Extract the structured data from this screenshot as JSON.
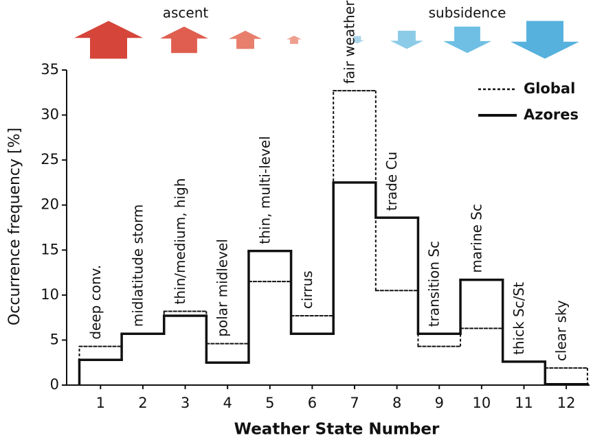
{
  "chart_data": {
    "type": "step",
    "x_label": "Weather State Number",
    "y_label": "Occurrence frequency [%]",
    "annotations": {
      "ascent": "ascent",
      "subsidence": "subsidence"
    },
    "x": [
      1,
      2,
      3,
      4,
      5,
      6,
      7,
      8,
      9,
      10,
      11,
      12
    ],
    "state_names": [
      "deep conv.",
      "midlatitude storm",
      "thin/medium, high",
      "polar midlevel",
      "thin, multi-level",
      "cirrus",
      "fair weather",
      "trade Cu",
      "transition Sc",
      "marine Sc",
      "thick Sc/St",
      "clear sky"
    ],
    "series": [
      {
        "name": "Global",
        "color": "#111111",
        "style": "dotted",
        "values": [
          4.3,
          5.7,
          8.2,
          4.6,
          11.5,
          7.7,
          32.7,
          10.5,
          4.3,
          6.3,
          2.6,
          1.9
        ]
      },
      {
        "name": "Azores",
        "color": "#111111",
        "style": "solid",
        "values": [
          2.8,
          5.7,
          7.7,
          2.5,
          14.9,
          5.7,
          22.5,
          18.6,
          5.7,
          11.7,
          2.6,
          0.1
        ]
      }
    ],
    "xlim": [
      0.2,
      12.55
    ],
    "xticks": [
      1,
      2,
      3,
      4,
      5,
      6,
      7,
      8,
      9,
      10,
      11,
      12
    ],
    "ylim": [
      0,
      35
    ],
    "yticks": [
      0,
      5,
      10,
      15,
      20,
      25,
      30,
      35
    ],
    "legend": "upper right"
  }
}
